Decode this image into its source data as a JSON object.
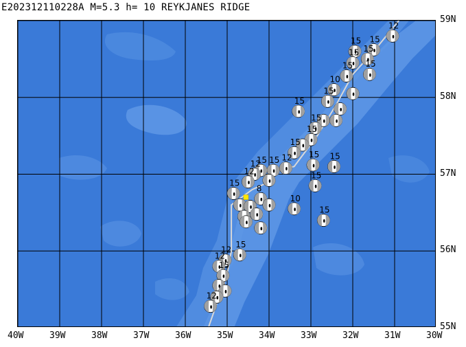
{
  "header": {
    "title": "E202312110228A M=5.3 h= 10 REYKJANES RIDGE"
  },
  "map": {
    "region": "Reykjanes Ridge",
    "lon_range": [
      -40,
      -30
    ],
    "lat_range": [
      55,
      59
    ],
    "colors": {
      "ocean_deep": "#3a7ad8",
      "ocean_shallow": "#5f98e6",
      "grid": "#000000",
      "plate_boundary": "#d8d8d8",
      "event_marker": "#ffe800"
    },
    "lat_labels": [
      "59N",
      "58N",
      "57N",
      "56N",
      "55N"
    ],
    "lon_labels": [
      "40W",
      "39W",
      "38W",
      "37W",
      "36W",
      "35W",
      "34W",
      "33W",
      "32W",
      "31W",
      "30W"
    ],
    "main_event": {
      "id": "E202312110228A",
      "lon": -34.55,
      "lat": 56.7,
      "marker": "yellow-square"
    },
    "mechanisms": [
      {
        "lon": -31.05,
        "lat": 58.8,
        "depth": "12"
      },
      {
        "lon": -31.5,
        "lat": 58.62,
        "depth": "15"
      },
      {
        "lon": -31.65,
        "lat": 58.5,
        "depth": "15"
      },
      {
        "lon": -31.95,
        "lat": 58.6,
        "depth": "15"
      },
      {
        "lon": -31.6,
        "lat": 58.3,
        "depth": "15"
      },
      {
        "lon": -32.0,
        "lat": 58.45,
        "depth": "15"
      },
      {
        "lon": -32.15,
        "lat": 58.28,
        "depth": "15"
      },
      {
        "lon": -32.45,
        "lat": 58.1,
        "depth": "10"
      },
      {
        "lon": -32.0,
        "lat": 58.05,
        "depth": ""
      },
      {
        "lon": -32.6,
        "lat": 57.95,
        "depth": "15"
      },
      {
        "lon": -32.3,
        "lat": 57.85,
        "depth": ""
      },
      {
        "lon": -33.3,
        "lat": 57.82,
        "depth": "15"
      },
      {
        "lon": -32.7,
        "lat": 57.7,
        "depth": ""
      },
      {
        "lon": -32.9,
        "lat": 57.6,
        "depth": "15"
      },
      {
        "lon": -32.4,
        "lat": 57.7,
        "depth": ""
      },
      {
        "lon": -33.0,
        "lat": 57.45,
        "depth": "15"
      },
      {
        "lon": -33.2,
        "lat": 57.38,
        "depth": ""
      },
      {
        "lon": -33.4,
        "lat": 57.28,
        "depth": "15"
      },
      {
        "lon": -32.95,
        "lat": 57.12,
        "depth": "15"
      },
      {
        "lon": -32.45,
        "lat": 57.1,
        "depth": "15"
      },
      {
        "lon": -33.6,
        "lat": 57.08,
        "depth": "12"
      },
      {
        "lon": -33.9,
        "lat": 57.05,
        "depth": "15"
      },
      {
        "lon": -34.2,
        "lat": 57.05,
        "depth": "15"
      },
      {
        "lon": -34.35,
        "lat": 57.0,
        "depth": "12"
      },
      {
        "lon": -34.5,
        "lat": 56.9,
        "depth": "12"
      },
      {
        "lon": -34.0,
        "lat": 56.92,
        "depth": ""
      },
      {
        "lon": -34.85,
        "lat": 56.75,
        "depth": "15"
      },
      {
        "lon": -34.7,
        "lat": 56.6,
        "depth": ""
      },
      {
        "lon": -34.2,
        "lat": 56.68,
        "depth": "8"
      },
      {
        "lon": -34.0,
        "lat": 56.6,
        "depth": ""
      },
      {
        "lon": -34.45,
        "lat": 56.58,
        "depth": ""
      },
      {
        "lon": -34.6,
        "lat": 56.45,
        "depth": ""
      },
      {
        "lon": -34.3,
        "lat": 56.48,
        "depth": ""
      },
      {
        "lon": -34.55,
        "lat": 56.38,
        "depth": ""
      },
      {
        "lon": -34.2,
        "lat": 56.3,
        "depth": ""
      },
      {
        "lon": -32.9,
        "lat": 56.85,
        "depth": "15"
      },
      {
        "lon": -33.4,
        "lat": 56.55,
        "depth": "10"
      },
      {
        "lon": -32.7,
        "lat": 56.4,
        "depth": "15"
      },
      {
        "lon": -34.7,
        "lat": 55.95,
        "depth": "15"
      },
      {
        "lon": -35.05,
        "lat": 55.88,
        "depth": "12"
      },
      {
        "lon": -35.2,
        "lat": 55.8,
        "depth": "12"
      },
      {
        "lon": -35.1,
        "lat": 55.68,
        "depth": "15"
      },
      {
        "lon": -35.2,
        "lat": 55.55,
        "depth": ""
      },
      {
        "lon": -35.05,
        "lat": 55.48,
        "depth": ""
      },
      {
        "lon": -35.25,
        "lat": 55.4,
        "depth": ""
      },
      {
        "lon": -35.4,
        "lat": 55.28,
        "depth": "12"
      }
    ],
    "plate_boundary_lonlat": [
      [
        -35.45,
        55.0
      ],
      [
        -35.0,
        55.7
      ],
      [
        -34.9,
        56.0
      ],
      [
        -34.9,
        56.6
      ],
      [
        -34.4,
        56.8
      ],
      [
        -34.0,
        56.9
      ],
      [
        -33.85,
        57.05
      ],
      [
        -33.4,
        57.1
      ],
      [
        -32.85,
        57.5
      ],
      [
        -32.4,
        57.9
      ],
      [
        -32.0,
        58.3
      ],
      [
        -31.5,
        58.6
      ],
      [
        -30.9,
        59.0
      ]
    ]
  }
}
